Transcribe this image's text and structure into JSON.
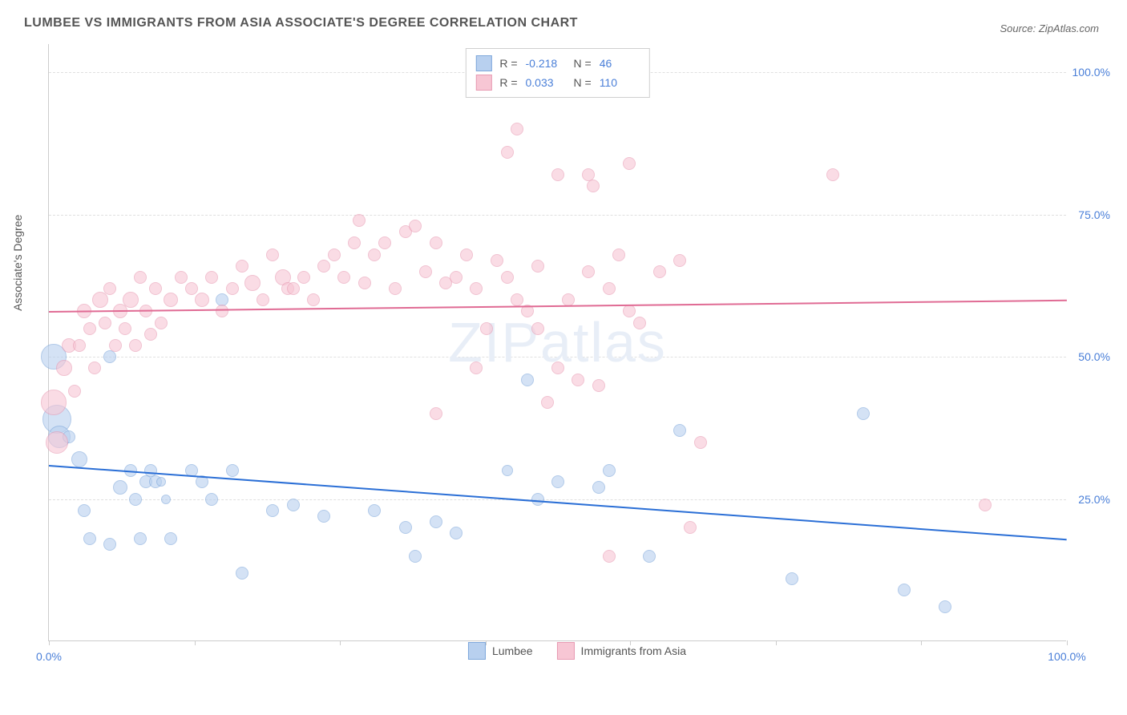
{
  "title": "LUMBEE VS IMMIGRANTS FROM ASIA ASSOCIATE'S DEGREE CORRELATION CHART",
  "source": "Source: ZipAtlas.com",
  "watermark": "ZIPatlas",
  "ylabel": "Associate's Degree",
  "chart": {
    "type": "scatter",
    "xlim": [
      0,
      100
    ],
    "ylim": [
      0,
      105
    ],
    "ytick_values": [
      25,
      50,
      75,
      100
    ],
    "ytick_labels": [
      "25.0%",
      "50.0%",
      "75.0%",
      "100.0%"
    ],
    "xtick_values": [
      0,
      100
    ],
    "xtick_labels": [
      "0.0%",
      "100.0%"
    ],
    "xtick_marks": [
      0,
      14.3,
      28.6,
      42.9,
      57.1,
      71.4,
      85.7,
      100
    ],
    "background_color": "#ffffff",
    "grid_color": "#e0e0e0"
  },
  "series": [
    {
      "name": "Lumbee",
      "fill_color": "#b8d0ef",
      "fill_opacity": 0.6,
      "stroke_color": "#7fa8db",
      "trend_color": "#2b6fd6",
      "stats": {
        "R": "-0.218",
        "N": "46"
      },
      "trend": {
        "x1": 0,
        "y1": 31,
        "x2": 100,
        "y2": 18
      },
      "points": [
        {
          "x": 0.5,
          "y": 50,
          "r": 16
        },
        {
          "x": 0.8,
          "y": 39,
          "r": 18
        },
        {
          "x": 1,
          "y": 36,
          "r": 14
        },
        {
          "x": 2,
          "y": 36,
          "r": 8
        },
        {
          "x": 3,
          "y": 32,
          "r": 10
        },
        {
          "x": 3.5,
          "y": 23,
          "r": 8
        },
        {
          "x": 4,
          "y": 18,
          "r": 8
        },
        {
          "x": 6,
          "y": 50,
          "r": 8
        },
        {
          "x": 6,
          "y": 17,
          "r": 8
        },
        {
          "x": 7,
          "y": 27,
          "r": 9
        },
        {
          "x": 8,
          "y": 30,
          "r": 8
        },
        {
          "x": 8.5,
          "y": 25,
          "r": 8
        },
        {
          "x": 9,
          "y": 18,
          "r": 8
        },
        {
          "x": 9.5,
          "y": 28,
          "r": 8
        },
        {
          "x": 10,
          "y": 30,
          "r": 8
        },
        {
          "x": 10.5,
          "y": 28,
          "r": 8
        },
        {
          "x": 11,
          "y": 28,
          "r": 6
        },
        {
          "x": 11.5,
          "y": 25,
          "r": 6
        },
        {
          "x": 12,
          "y": 18,
          "r": 8
        },
        {
          "x": 14,
          "y": 30,
          "r": 8
        },
        {
          "x": 15,
          "y": 28,
          "r": 8
        },
        {
          "x": 16,
          "y": 25,
          "r": 8
        },
        {
          "x": 17,
          "y": 60,
          "r": 8
        },
        {
          "x": 18,
          "y": 30,
          "r": 8
        },
        {
          "x": 19,
          "y": 12,
          "r": 8
        },
        {
          "x": 22,
          "y": 23,
          "r": 8
        },
        {
          "x": 24,
          "y": 24,
          "r": 8
        },
        {
          "x": 27,
          "y": 22,
          "r": 8
        },
        {
          "x": 32,
          "y": 23,
          "r": 8
        },
        {
          "x": 35,
          "y": 20,
          "r": 8
        },
        {
          "x": 36,
          "y": 15,
          "r": 8
        },
        {
          "x": 38,
          "y": 21,
          "r": 8
        },
        {
          "x": 40,
          "y": 19,
          "r": 8
        },
        {
          "x": 45,
          "y": 30,
          "r": 7
        },
        {
          "x": 47,
          "y": 46,
          "r": 8
        },
        {
          "x": 48,
          "y": 25,
          "r": 8
        },
        {
          "x": 50,
          "y": 28,
          "r": 8
        },
        {
          "x": 54,
          "y": 27,
          "r": 8
        },
        {
          "x": 55,
          "y": 30,
          "r": 8
        },
        {
          "x": 59,
          "y": 15,
          "r": 8
        },
        {
          "x": 62,
          "y": 37,
          "r": 8
        },
        {
          "x": 73,
          "y": 11,
          "r": 8
        },
        {
          "x": 80,
          "y": 40,
          "r": 8
        },
        {
          "x": 84,
          "y": 9,
          "r": 8
        },
        {
          "x": 88,
          "y": 6,
          "r": 8
        }
      ]
    },
    {
      "name": "Immigrants from Asia",
      "fill_color": "#f7c6d4",
      "fill_opacity": 0.6,
      "stroke_color": "#e89bb3",
      "trend_color": "#e06b94",
      "stats": {
        "R": "0.033",
        "N": "110"
      },
      "trend": {
        "x1": 0,
        "y1": 58,
        "x2": 100,
        "y2": 60
      },
      "points": [
        {
          "x": 0.5,
          "y": 42,
          "r": 16
        },
        {
          "x": 0.8,
          "y": 35,
          "r": 14
        },
        {
          "x": 1.5,
          "y": 48,
          "r": 10
        },
        {
          "x": 2,
          "y": 52,
          "r": 9
        },
        {
          "x": 2.5,
          "y": 44,
          "r": 8
        },
        {
          "x": 3,
          "y": 52,
          "r": 8
        },
        {
          "x": 3.5,
          "y": 58,
          "r": 9
        },
        {
          "x": 4,
          "y": 55,
          "r": 8
        },
        {
          "x": 4.5,
          "y": 48,
          "r": 8
        },
        {
          "x": 5,
          "y": 60,
          "r": 10
        },
        {
          "x": 5.5,
          "y": 56,
          "r": 8
        },
        {
          "x": 6,
          "y": 62,
          "r": 8
        },
        {
          "x": 6.5,
          "y": 52,
          "r": 8
        },
        {
          "x": 7,
          "y": 58,
          "r": 9
        },
        {
          "x": 7.5,
          "y": 55,
          "r": 8
        },
        {
          "x": 8,
          "y": 60,
          "r": 10
        },
        {
          "x": 8.5,
          "y": 52,
          "r": 8
        },
        {
          "x": 9,
          "y": 64,
          "r": 8
        },
        {
          "x": 9.5,
          "y": 58,
          "r": 8
        },
        {
          "x": 10,
          "y": 54,
          "r": 8
        },
        {
          "x": 10.5,
          "y": 62,
          "r": 8
        },
        {
          "x": 11,
          "y": 56,
          "r": 8
        },
        {
          "x": 12,
          "y": 60,
          "r": 9
        },
        {
          "x": 13,
          "y": 64,
          "r": 8
        },
        {
          "x": 14,
          "y": 62,
          "r": 8
        },
        {
          "x": 15,
          "y": 60,
          "r": 9
        },
        {
          "x": 16,
          "y": 64,
          "r": 8
        },
        {
          "x": 17,
          "y": 58,
          "r": 8
        },
        {
          "x": 18,
          "y": 62,
          "r": 8
        },
        {
          "x": 19,
          "y": 66,
          "r": 8
        },
        {
          "x": 20,
          "y": 63,
          "r": 10
        },
        {
          "x": 21,
          "y": 60,
          "r": 8
        },
        {
          "x": 22,
          "y": 68,
          "r": 8
        },
        {
          "x": 23,
          "y": 64,
          "r": 10
        },
        {
          "x": 23.5,
          "y": 62,
          "r": 8
        },
        {
          "x": 24,
          "y": 62,
          "r": 8
        },
        {
          "x": 25,
          "y": 64,
          "r": 8
        },
        {
          "x": 26,
          "y": 60,
          "r": 8
        },
        {
          "x": 27,
          "y": 66,
          "r": 8
        },
        {
          "x": 28,
          "y": 68,
          "r": 8
        },
        {
          "x": 29,
          "y": 64,
          "r": 8
        },
        {
          "x": 30,
          "y": 70,
          "r": 8
        },
        {
          "x": 30.5,
          "y": 74,
          "r": 8
        },
        {
          "x": 31,
          "y": 63,
          "r": 8
        },
        {
          "x": 32,
          "y": 68,
          "r": 8
        },
        {
          "x": 33,
          "y": 70,
          "r": 8
        },
        {
          "x": 34,
          "y": 62,
          "r": 8
        },
        {
          "x": 35,
          "y": 72,
          "r": 8
        },
        {
          "x": 36,
          "y": 73,
          "r": 8
        },
        {
          "x": 37,
          "y": 65,
          "r": 8
        },
        {
          "x": 38,
          "y": 70,
          "r": 8
        },
        {
          "x": 38,
          "y": 40,
          "r": 8
        },
        {
          "x": 39,
          "y": 63,
          "r": 8
        },
        {
          "x": 40,
          "y": 64,
          "r": 8
        },
        {
          "x": 41,
          "y": 68,
          "r": 8
        },
        {
          "x": 42,
          "y": 62,
          "r": 8
        },
        {
          "x": 42,
          "y": 48,
          "r": 8
        },
        {
          "x": 43,
          "y": 55,
          "r": 8
        },
        {
          "x": 44,
          "y": 67,
          "r": 8
        },
        {
          "x": 45,
          "y": 64,
          "r": 8
        },
        {
          "x": 45,
          "y": 86,
          "r": 8
        },
        {
          "x": 46,
          "y": 60,
          "r": 8
        },
        {
          "x": 46,
          "y": 90,
          "r": 8
        },
        {
          "x": 47,
          "y": 58,
          "r": 8
        },
        {
          "x": 48,
          "y": 55,
          "r": 8
        },
        {
          "x": 48,
          "y": 66,
          "r": 8
        },
        {
          "x": 49,
          "y": 42,
          "r": 8
        },
        {
          "x": 50,
          "y": 48,
          "r": 8
        },
        {
          "x": 50,
          "y": 82,
          "r": 8
        },
        {
          "x": 51,
          "y": 60,
          "r": 8
        },
        {
          "x": 52,
          "y": 46,
          "r": 8
        },
        {
          "x": 53,
          "y": 65,
          "r": 8
        },
        {
          "x": 53,
          "y": 82,
          "r": 8
        },
        {
          "x": 53.5,
          "y": 80,
          "r": 8
        },
        {
          "x": 54,
          "y": 45,
          "r": 8
        },
        {
          "x": 55,
          "y": 15,
          "r": 8
        },
        {
          "x": 55,
          "y": 62,
          "r": 8
        },
        {
          "x": 56,
          "y": 68,
          "r": 8
        },
        {
          "x": 57,
          "y": 58,
          "r": 8
        },
        {
          "x": 57,
          "y": 84,
          "r": 8
        },
        {
          "x": 58,
          "y": 56,
          "r": 8
        },
        {
          "x": 60,
          "y": 65,
          "r": 8
        },
        {
          "x": 62,
          "y": 67,
          "r": 8
        },
        {
          "x": 63,
          "y": 20,
          "r": 8
        },
        {
          "x": 64,
          "y": 35,
          "r": 8
        },
        {
          "x": 92,
          "y": 24,
          "r": 8
        },
        {
          "x": 77,
          "y": 82,
          "r": 8
        }
      ]
    }
  ],
  "legend": [
    {
      "label": "Lumbee",
      "fill": "#b8d0ef",
      "stroke": "#7fa8db"
    },
    {
      "label": "Immigrants from Asia",
      "fill": "#f7c6d4",
      "stroke": "#e89bb3"
    }
  ]
}
